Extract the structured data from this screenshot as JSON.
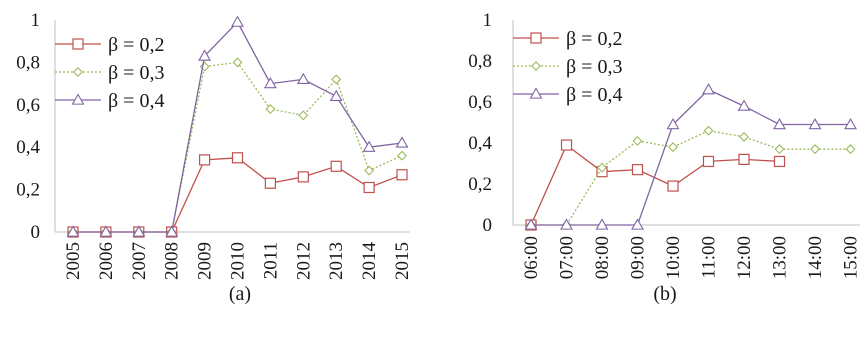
{
  "chart_data": [
    {
      "type": "line",
      "caption": "(a)",
      "categories": [
        "2005",
        "2006",
        "2007",
        "2008",
        "2009",
        "2010",
        "2011",
        "2012",
        "2013",
        "2014",
        "2015"
      ],
      "ylim": [
        0,
        1
      ],
      "yticks": [
        "0",
        "0,2",
        "0,4",
        "0,6",
        "0,8",
        "1"
      ],
      "ytick_values": [
        0,
        0.2,
        0.4,
        0.6,
        0.8,
        1
      ],
      "grid": false,
      "legend": "top-left",
      "series": [
        {
          "name": "β = 0,2",
          "color": "#c0504d",
          "marker": "square",
          "dash": "solid",
          "values": [
            0,
            0,
            0,
            0,
            0.34,
            0.35,
            0.23,
            0.26,
            0.31,
            0.21,
            0.27
          ]
        },
        {
          "name": "β = 0,3",
          "color": "#9bbb59",
          "marker": "diamond",
          "dash": "dotted",
          "values": [
            0,
            0,
            0,
            0,
            0.78,
            0.8,
            0.58,
            0.55,
            0.72,
            0.29,
            0.36
          ]
        },
        {
          "name": "β = 0,4",
          "color": "#8064a2",
          "marker": "triangle",
          "dash": "solid",
          "values": [
            0,
            0,
            0,
            0,
            0.83,
            0.99,
            0.7,
            0.72,
            0.64,
            0.4,
            0.42
          ]
        }
      ]
    },
    {
      "type": "line",
      "caption": "(b)",
      "categories": [
        "06:00",
        "07:00",
        "08:00",
        "09:00",
        "10:00",
        "11:00",
        "12:00",
        "13:00",
        "14:00",
        "15:00"
      ],
      "ylim": [
        0,
        1
      ],
      "yticks": [
        "0",
        "0,2",
        "0,4",
        "0,6",
        "0,8",
        "1"
      ],
      "ytick_values": [
        0,
        0.2,
        0.4,
        0.6,
        0.8,
        1
      ],
      "grid": false,
      "legend": "top-left",
      "series": [
        {
          "name": "β = 0,2",
          "color": "#c0504d",
          "marker": "square",
          "dash": "solid",
          "values": [
            0,
            0.39,
            0.26,
            0.27,
            0.19,
            0.31,
            0.32,
            0.31,
            null,
            null
          ]
        },
        {
          "name": "β = 0,3",
          "color": "#9bbb59",
          "marker": "diamond",
          "dash": "dotted",
          "values": [
            0,
            0,
            0.28,
            0.41,
            0.38,
            0.46,
            0.43,
            0.37,
            0.37,
            0.37
          ]
        },
        {
          "name": "β = 0,4",
          "color": "#8064a2",
          "marker": "triangle",
          "dash": "solid",
          "values": [
            0,
            0,
            0,
            0,
            0.49,
            0.66,
            0.58,
            0.49,
            0.49,
            0.49
          ]
        }
      ]
    }
  ]
}
